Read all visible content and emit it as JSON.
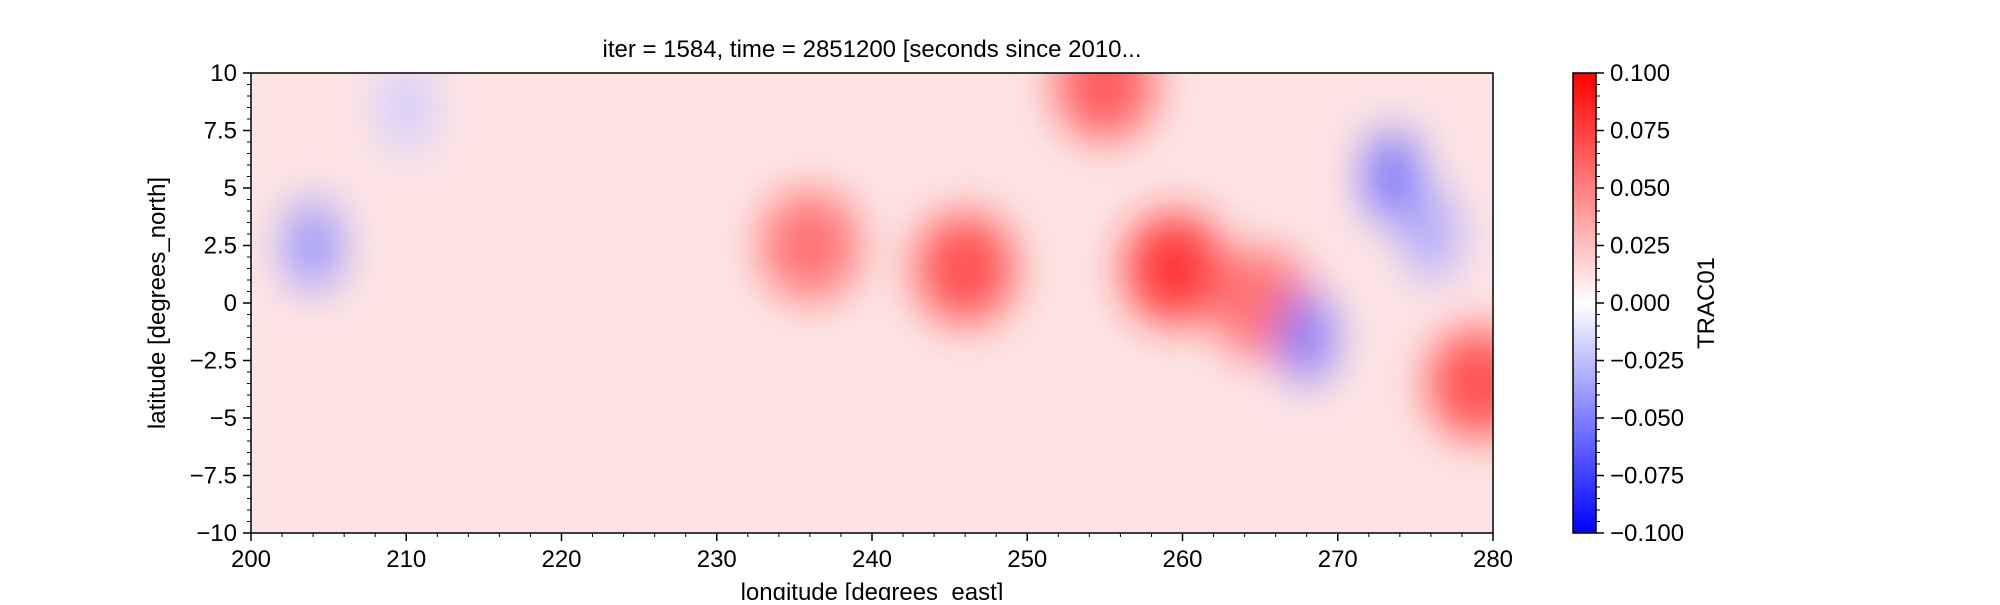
{
  "chart_data": {
    "type": "heatmap",
    "title": "iter = 1584, time = 2851200 [seconds since 2010...",
    "xlabel": "longitude [degrees_east]",
    "ylabel": "latitude [degrees_north]",
    "xlim": [
      200,
      280
    ],
    "ylim": [
      -10,
      10
    ],
    "x_ticks": [
      200,
      210,
      220,
      230,
      240,
      250,
      260,
      270,
      280
    ],
    "x_tick_labels": [
      "200",
      "210",
      "220",
      "230",
      "240",
      "250",
      "260",
      "270",
      "280"
    ],
    "y_ticks": [
      -10,
      -7.5,
      -5,
      -2.5,
      0,
      2.5,
      5,
      7.5,
      10
    ],
    "y_tick_labels": [
      "−10",
      "−7.5",
      "−5",
      "−2.5",
      "0",
      "2.5",
      "5",
      "7.5",
      "10"
    ],
    "colorbar": {
      "label": "TRAC01",
      "vmin": -0.1,
      "vmax": 0.1,
      "cmap": "bwr",
      "ticks": [
        0.1,
        0.075,
        0.05,
        0.025,
        0.0,
        -0.025,
        -0.05,
        -0.075,
        -0.1
      ],
      "tick_labels": [
        "0.100",
        "0.075",
        "0.050",
        "0.025",
        "0.000",
        "−0.025",
        "−0.050",
        "−0.075",
        "−0.100"
      ],
      "colors": {
        "min": "#0000ff",
        "mid": "#ffffff",
        "max": "#ff0000"
      }
    },
    "grid": false,
    "field_features": [
      {
        "kind": "positive",
        "lon": 259.5,
        "lat": 1.5,
        "value": 0.085
      },
      {
        "kind": "positive",
        "lon": 246,
        "lat": 1.5,
        "value": 0.075
      },
      {
        "kind": "positive",
        "lon": 236,
        "lat": 2.5,
        "value": 0.06
      },
      {
        "kind": "positive",
        "lon": 265,
        "lat": 0,
        "value": 0.06
      },
      {
        "kind": "positive",
        "lon": 255,
        "lat": 9.5,
        "value": 0.07
      },
      {
        "kind": "positive",
        "lon": 279,
        "lat": -3.5,
        "value": 0.075
      },
      {
        "kind": "negative",
        "lon": 273.5,
        "lat": 5.5,
        "value": -0.06
      },
      {
        "kind": "negative",
        "lon": 276,
        "lat": 3,
        "value": -0.035
      },
      {
        "kind": "negative",
        "lon": 204,
        "lat": 2.5,
        "value": -0.045
      },
      {
        "kind": "negative",
        "lon": 268,
        "lat": -1.5,
        "value": -0.055
      },
      {
        "kind": "negative",
        "lon": 210,
        "lat": 8.5,
        "value": -0.02
      }
    ]
  }
}
